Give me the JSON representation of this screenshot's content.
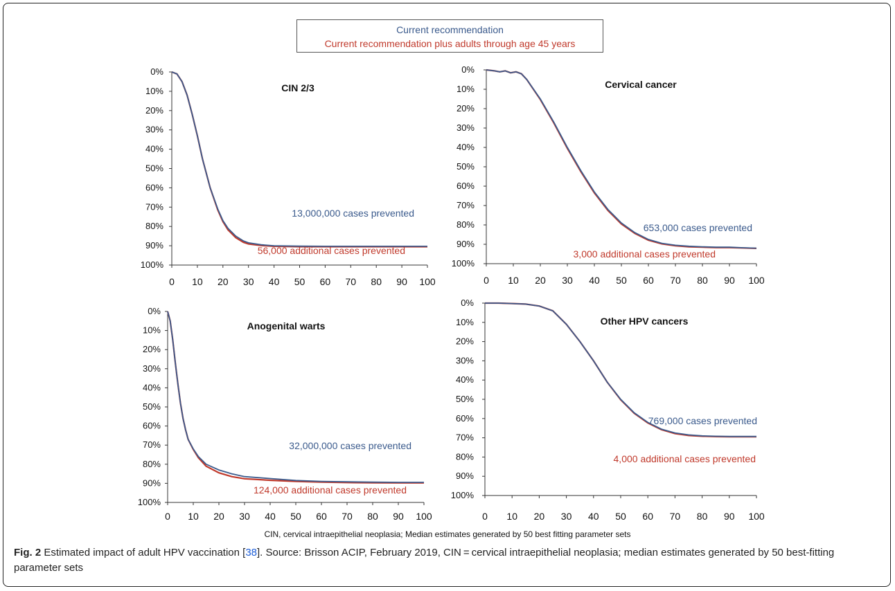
{
  "colors": {
    "series_current": "#3a5a8c",
    "series_plus": "#c0392b",
    "axis": "#333333",
    "caption_link": "#1a5bd6"
  },
  "legend": {
    "current": "Current recommendation",
    "plus": "Current recommendation plus adults through age 45 years"
  },
  "note": "CIN, cervical intraepithelial neoplasia; Median estimates generated by 50 best fitting parameter sets",
  "caption": {
    "label": "Fig. 2",
    "text_before": " Estimated impact of adult HPV vaccination [",
    "ref": "38",
    "text_after": "]. Source: Brisson ACIP, February 2019, CIN = cervical intraepithelial neoplasia; median estimates generated by 50 best-fitting parameter sets"
  },
  "chart_data": [
    {
      "type": "line",
      "title": "CIN 2/3",
      "x_ticks": [
        0,
        10,
        20,
        30,
        40,
        50,
        60,
        70,
        80,
        90,
        100
      ],
      "y_ticks": [
        "0%",
        "10%",
        "20%",
        "30%",
        "40%",
        "50%",
        "60%",
        "70%",
        "80%",
        "90%",
        "100%"
      ],
      "xlim": [
        0,
        100
      ],
      "ylim": [
        0,
        100
      ],
      "y_inverted": true,
      "annotations": [
        "13,000,000 cases prevented",
        "56,000 additional cases prevented"
      ],
      "series": [
        {
          "key": "current",
          "x": [
            0,
            2,
            4,
            6,
            8,
            10,
            12,
            15,
            18,
            20,
            22,
            25,
            28,
            30,
            35,
            40,
            50,
            60,
            70,
            80,
            90,
            100
          ],
          "y": [
            0,
            1,
            5,
            12,
            22,
            33,
            45,
            60,
            71,
            77,
            81,
            85,
            87.5,
            88.5,
            89.5,
            90,
            90.2,
            90.3,
            90.3,
            90.3,
            90.3,
            90.3
          ]
        },
        {
          "key": "plus",
          "x": [
            0,
            2,
            4,
            6,
            8,
            10,
            12,
            15,
            18,
            20,
            22,
            25,
            28,
            30,
            35,
            40,
            50,
            60,
            70,
            80,
            90,
            100
          ],
          "y": [
            0,
            1,
            5,
            12,
            22,
            33,
            45,
            60,
            71.5,
            77.5,
            81.8,
            85.8,
            88.2,
            89.1,
            89.9,
            90.3,
            90.5,
            90.5,
            90.5,
            90.5,
            90.5,
            90.5
          ]
        }
      ]
    },
    {
      "type": "line",
      "title": "Cervical cancer",
      "x_ticks": [
        0,
        10,
        20,
        30,
        40,
        50,
        60,
        70,
        80,
        90,
        100
      ],
      "y_ticks": [
        "0%",
        "10%",
        "20%",
        "30%",
        "40%",
        "50%",
        "60%",
        "70%",
        "80%",
        "90%",
        "100%"
      ],
      "xlim": [
        0,
        100
      ],
      "ylim": [
        0,
        100
      ],
      "y_inverted": true,
      "annotations": [
        "653,000 cases prevented",
        "3,000 additional cases prevented"
      ],
      "series": [
        {
          "key": "current",
          "x": [
            0,
            3,
            5,
            7,
            9,
            11,
            13,
            15,
            20,
            25,
            30,
            35,
            40,
            45,
            50,
            55,
            60,
            65,
            70,
            75,
            80,
            85,
            90,
            95,
            100
          ],
          "y": [
            0,
            0.5,
            1,
            0.5,
            1.5,
            1,
            2,
            5,
            15,
            27,
            40,
            52,
            63,
            72,
            79,
            84,
            87.5,
            89.5,
            90.5,
            91,
            91.3,
            91.5,
            91.5,
            91.8,
            92
          ]
        },
        {
          "key": "plus",
          "x": [
            0,
            3,
            5,
            7,
            9,
            11,
            13,
            15,
            20,
            25,
            30,
            35,
            40,
            45,
            50,
            55,
            60,
            65,
            70,
            75,
            80,
            85,
            90,
            95,
            100
          ],
          "y": [
            0,
            0.5,
            1,
            0.5,
            1.5,
            1,
            2,
            5,
            15.3,
            27.4,
            40.5,
            52.5,
            63.5,
            72.5,
            79.5,
            84.4,
            87.9,
            89.8,
            90.8,
            91.3,
            91.5,
            91.7,
            91.7,
            91.9,
            92.1
          ]
        }
      ]
    },
    {
      "type": "line",
      "title": "Anogenital warts",
      "x_ticks": [
        0,
        10,
        20,
        30,
        40,
        50,
        60,
        70,
        80,
        90,
        100
      ],
      "y_ticks": [
        "0%",
        "10%",
        "20%",
        "30%",
        "40%",
        "50%",
        "60%",
        "70%",
        "80%",
        "90%",
        "100%"
      ],
      "xlim": [
        0,
        100
      ],
      "ylim": [
        0,
        100
      ],
      "y_inverted": true,
      "annotations": [
        "32,000,000 cases prevented",
        "124,000 additional cases prevented"
      ],
      "series": [
        {
          "key": "current",
          "x": [
            0,
            1,
            2,
            3,
            4,
            5,
            6,
            7,
            8,
            10,
            12,
            15,
            20,
            25,
            30,
            40,
            50,
            60,
            70,
            80,
            90,
            100
          ],
          "y": [
            0,
            5,
            15,
            27,
            38,
            48,
            56,
            62,
            67,
            72,
            76,
            80,
            83,
            85,
            86.5,
            87.5,
            88.5,
            89,
            89.2,
            89.4,
            89.5,
            89.5
          ]
        },
        {
          "key": "plus",
          "x": [
            0,
            1,
            2,
            3,
            4,
            5,
            6,
            7,
            8,
            10,
            12,
            15,
            20,
            25,
            30,
            40,
            50,
            60,
            70,
            80,
            90,
            100
          ],
          "y": [
            0,
            5,
            15,
            27,
            38,
            48,
            56,
            62,
            67,
            72.3,
            76.6,
            81,
            84.5,
            86.5,
            87.6,
            88.4,
            89,
            89.4,
            89.6,
            89.7,
            89.8,
            89.8
          ]
        }
      ]
    },
    {
      "type": "line",
      "title": "Other HPV cancers",
      "x_ticks": [
        0,
        10,
        20,
        30,
        40,
        50,
        60,
        70,
        80,
        90,
        100
      ],
      "y_ticks": [
        "0%",
        "10%",
        "20%",
        "30%",
        "40%",
        "50%",
        "60%",
        "70%",
        "80%",
        "90%",
        "100%"
      ],
      "xlim": [
        0,
        100
      ],
      "ylim": [
        0,
        100
      ],
      "y_inverted": true,
      "annotations": [
        "769,000 cases prevented",
        "4,000 additional cases prevented"
      ],
      "series": [
        {
          "key": "current",
          "x": [
            0,
            5,
            10,
            15,
            20,
            25,
            30,
            35,
            40,
            45,
            50,
            55,
            60,
            65,
            70,
            75,
            80,
            85,
            90,
            95,
            100
          ],
          "y": [
            0,
            0,
            0.2,
            0.5,
            1.5,
            4,
            11,
            20,
            30,
            41,
            50,
            57,
            62,
            65.5,
            67.5,
            68.5,
            69,
            69.2,
            69.3,
            69.3,
            69.3
          ]
        },
        {
          "key": "plus",
          "x": [
            0,
            5,
            10,
            15,
            20,
            25,
            30,
            35,
            40,
            45,
            50,
            55,
            60,
            65,
            70,
            75,
            80,
            85,
            90,
            95,
            100
          ],
          "y": [
            0,
            0,
            0.2,
            0.5,
            1.5,
            4,
            11,
            20,
            30,
            41,
            50.2,
            57.3,
            62.3,
            65.8,
            67.8,
            68.8,
            69.2,
            69.4,
            69.5,
            69.5,
            69.5
          ]
        }
      ]
    }
  ]
}
